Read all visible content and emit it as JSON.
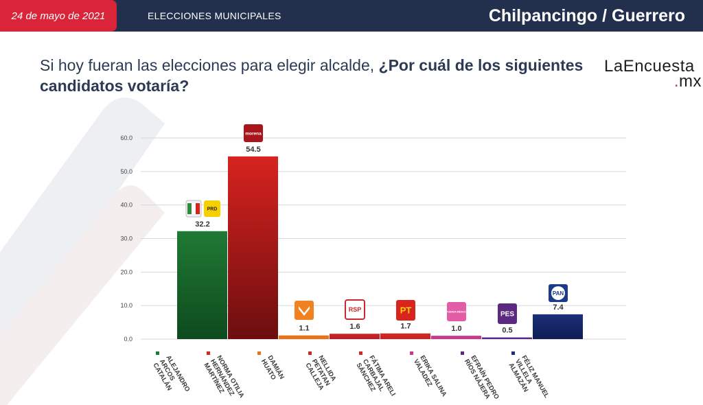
{
  "header": {
    "date": "24 de mayo de 2021",
    "section": "ELECCIONES MUNICIPALES",
    "location": "Chilpancingo / Guerrero"
  },
  "question": {
    "part1": "Si hoy fueran las elecciones para elegir alcalde, ",
    "part2": "¿Por cuál de los siguientes candidatos votaría?"
  },
  "brand": {
    "line1": "LaEncuesta",
    "dot": ".",
    "tld": "mx"
  },
  "party_logos": {
    "morena": "morena",
    "prd": "PRD",
    "pt": "PT",
    "pes": "PES",
    "pan": "PAN",
    "rsp": "RSP",
    "fxm": "FUERZA MÉXICO"
  },
  "chart_data": {
    "type": "bar",
    "ylim": [
      0,
      60
    ],
    "yticks": [
      "0.0",
      "10.0",
      "20.0",
      "30.0",
      "40.0",
      "50.0",
      "60.0"
    ],
    "categories": [
      "ALEJANDRO ARCOS CATALÁN",
      "NORMA OTILIA HERNÁNDEZ MARTÍNEZ",
      "DAMIÁN HUATO",
      "NELLIDA PETATAN CALLEJA",
      "FÁTIMA ARELI CARBAJAL SÁNCHEZ",
      "ERIKA SALINA VALADEZ",
      "EFRAÍN PEDRO RÍOS NÁJERA",
      "FÉLIZ MANUEL VILLELA ALMAZÁN"
    ],
    "label_lines": [
      [
        "ALEJANDRO",
        "ARCOS",
        "CATALÁN"
      ],
      [
        "NORMA OTILIA",
        "HERNÁNDEZ",
        "MARTÍNEZ"
      ],
      [
        "DAMIÁN",
        "HUATO"
      ],
      [
        "NELLIDA",
        "PETATAN",
        "CALLEJA"
      ],
      [
        "FÁTIMA ARELI",
        "CARBAJAL",
        "SÁNCHEZ"
      ],
      [
        "ERIKA SALINA",
        "VALADEZ"
      ],
      [
        "EFRAÍN PEDRO",
        "RÍOS NÁJERA"
      ],
      [
        "FÉLIZ MANUEL",
        "VILLELA",
        "ALMAZÁN"
      ]
    ],
    "values": [
      32.2,
      54.5,
      1.1,
      1.6,
      1.7,
      1.0,
      0.5,
      7.4
    ],
    "value_labels": [
      "32.2",
      "54.5",
      "1.1",
      "1.6",
      "1.7",
      "1.0",
      "0.5",
      "7.4"
    ],
    "colors": [
      "#1f7a34",
      "#d8231f",
      "#e8731a",
      "#c9282e",
      "#d12a24",
      "#c8398d",
      "#5b2a80",
      "#1c2f7a"
    ],
    "colors_bottom": [
      "#0e4a1e",
      "#6b0e0e",
      "#e8731a",
      "#b31f24",
      "#c22220",
      "#c8398d",
      "#5b2a80",
      "#0f1d55"
    ],
    "grid": true,
    "legend": "markers-below-axis"
  }
}
